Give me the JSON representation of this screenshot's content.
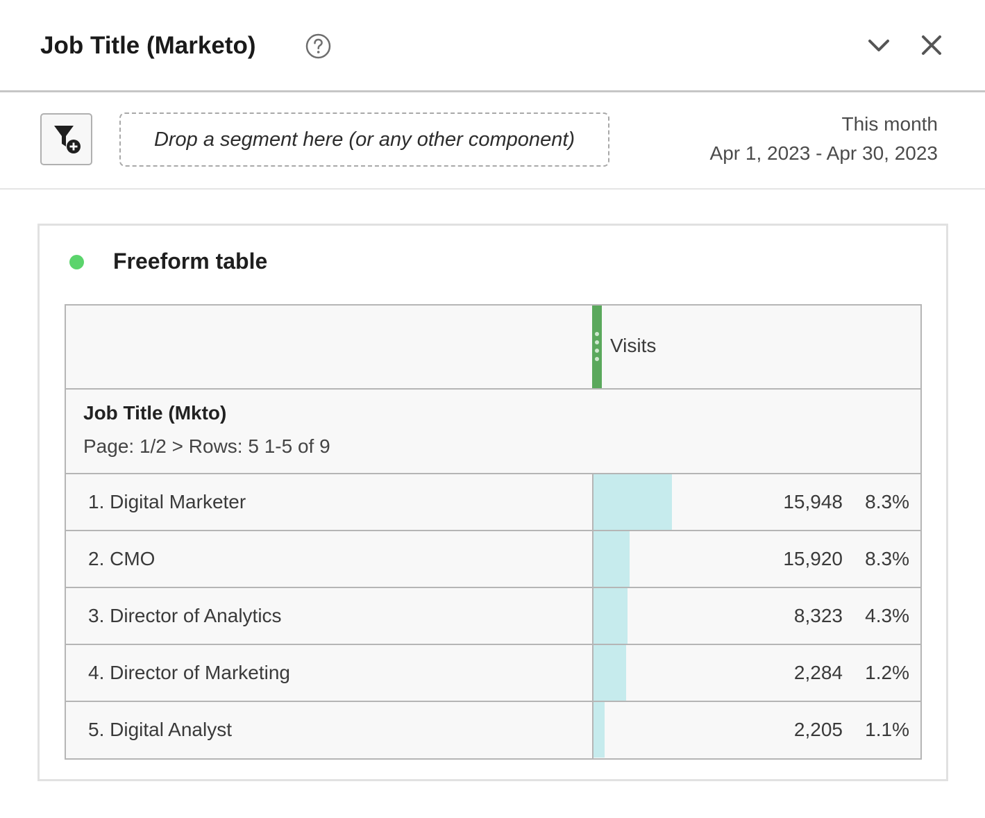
{
  "header": {
    "title": "Job Title (Marketo)",
    "help_icon": "help-circle-icon",
    "collapse_icon": "chevron-down-icon",
    "close_icon": "close-icon"
  },
  "toolbar": {
    "segment_button_icon": "filter-add-icon",
    "drop_zone_text": "Drop a segment here (or any other component)",
    "date_label": "This month",
    "date_range": "Apr 1, 2023 - Apr 30, 2023"
  },
  "card": {
    "status_color": "#5bd46c",
    "title": "Freeform table"
  },
  "table": {
    "metric_header": "Visits",
    "dimension_title": "Job Title (Mkto)",
    "pager": "Page: 1/2 > Rows: 5  1-5 of 9",
    "bar_color": "#c6ebed",
    "rows": [
      {
        "label": "1. Digital Marketer",
        "value": "15,948",
        "percent": "8.3%",
        "bar_fraction": 0.24
      },
      {
        "label": "2. CMO",
        "value": "15,920",
        "percent": "8.3%",
        "bar_fraction": 0.11
      },
      {
        "label": "3. Director of Analytics",
        "value": "8,323",
        "percent": "4.3%",
        "bar_fraction": 0.105
      },
      {
        "label": "4. Director of Marketing",
        "value": "2,284",
        "percent": "1.2%",
        "bar_fraction": 0.1
      },
      {
        "label": "5. Digital Analyst",
        "value": "2,205",
        "percent": "1.1%",
        "bar_fraction": 0.033
      }
    ]
  }
}
